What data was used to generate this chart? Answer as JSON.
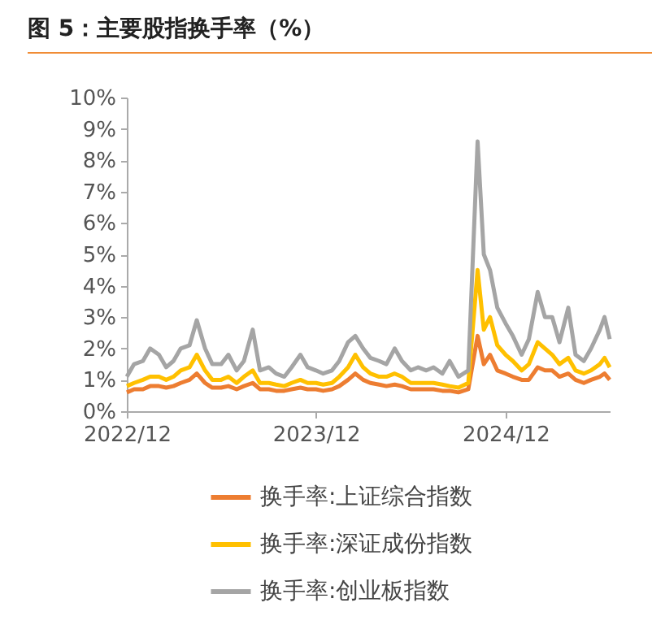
{
  "chart_data": {
    "type": "line",
    "title": "图 5：主要股指换手率（%）",
    "x": [
      "2022-12-01",
      "2022-12-15",
      "2023-01-01",
      "2023-01-15",
      "2023-02-01",
      "2023-02-15",
      "2023-03-01",
      "2023-03-15",
      "2023-04-01",
      "2023-04-15",
      "2023-05-01",
      "2023-05-15",
      "2023-06-01",
      "2023-06-15",
      "2023-07-01",
      "2023-07-15",
      "2023-08-01",
      "2023-08-15",
      "2023-09-01",
      "2023-09-15",
      "2023-10-01",
      "2023-10-15",
      "2023-11-01",
      "2023-11-15",
      "2023-12-01",
      "2023-12-15",
      "2024-01-01",
      "2024-01-15",
      "2024-02-01",
      "2024-02-15",
      "2024-03-01",
      "2024-03-15",
      "2024-04-01",
      "2024-04-15",
      "2024-05-01",
      "2024-05-15",
      "2024-06-01",
      "2024-06-15",
      "2024-07-01",
      "2024-07-15",
      "2024-08-01",
      "2024-08-15",
      "2024-09-01",
      "2024-09-20",
      "2024-10-08",
      "2024-10-20",
      "2024-11-01",
      "2024-11-15",
      "2024-12-01",
      "2024-12-15",
      "2025-01-01",
      "2025-01-15",
      "2025-02-01",
      "2025-02-15",
      "2025-03-01",
      "2025-03-15",
      "2025-04-01",
      "2025-04-15",
      "2025-05-01",
      "2025-05-15",
      "2025-06-01",
      "2025-06-10",
      "2025-06-20"
    ],
    "series": [
      {
        "name": "换手率:上证综合指数",
        "color": "#ed7d31",
        "values": [
          0.6,
          0.7,
          0.7,
          0.8,
          0.8,
          0.75,
          0.8,
          0.9,
          1.0,
          1.2,
          0.9,
          0.75,
          0.75,
          0.8,
          0.7,
          0.8,
          0.9,
          0.7,
          0.7,
          0.65,
          0.65,
          0.7,
          0.75,
          0.7,
          0.7,
          0.65,
          0.7,
          0.8,
          1.0,
          1.2,
          1.0,
          0.9,
          0.85,
          0.8,
          0.85,
          0.8,
          0.7,
          0.7,
          0.7,
          0.7,
          0.65,
          0.65,
          0.6,
          0.7,
          2.4,
          1.5,
          1.8,
          1.3,
          1.2,
          1.1,
          1.0,
          1.0,
          1.4,
          1.3,
          1.3,
          1.1,
          1.2,
          1.0,
          0.9,
          1.0,
          1.1,
          1.2,
          1.0
        ]
      },
      {
        "name": "换手率:深证成份指数",
        "color": "#ffc000",
        "values": [
          0.8,
          0.9,
          1.0,
          1.1,
          1.1,
          1.0,
          1.1,
          1.3,
          1.4,
          1.8,
          1.3,
          1.0,
          1.0,
          1.1,
          0.9,
          1.1,
          1.3,
          0.9,
          0.9,
          0.85,
          0.8,
          0.9,
          1.0,
          0.9,
          0.9,
          0.85,
          0.9,
          1.1,
          1.4,
          1.8,
          1.4,
          1.2,
          1.1,
          1.1,
          1.2,
          1.1,
          0.9,
          0.9,
          0.9,
          0.9,
          0.85,
          0.8,
          0.75,
          0.9,
          4.5,
          2.6,
          3.0,
          2.1,
          1.8,
          1.6,
          1.3,
          1.5,
          2.2,
          2.0,
          1.8,
          1.5,
          1.7,
          1.3,
          1.2,
          1.3,
          1.5,
          1.7,
          1.4
        ]
      },
      {
        "name": "换手率:创业板指数",
        "color": "#a5a5a5",
        "values": [
          1.1,
          1.5,
          1.6,
          2.0,
          1.8,
          1.4,
          1.6,
          2.0,
          2.1,
          2.9,
          2.0,
          1.5,
          1.5,
          1.8,
          1.3,
          1.6,
          2.6,
          1.3,
          1.4,
          1.2,
          1.1,
          1.4,
          1.8,
          1.4,
          1.3,
          1.2,
          1.3,
          1.6,
          2.2,
          2.4,
          2.0,
          1.7,
          1.6,
          1.5,
          2.0,
          1.6,
          1.3,
          1.4,
          1.3,
          1.4,
          1.2,
          1.6,
          1.1,
          1.3,
          8.6,
          5.0,
          4.5,
          3.3,
          2.8,
          2.4,
          1.8,
          2.3,
          3.8,
          3.0,
          3.0,
          2.2,
          3.3,
          1.8,
          1.6,
          2.0,
          2.6,
          3.0,
          2.3
        ]
      }
    ],
    "xlim": [
      "2022-12-01",
      "2025-06-20"
    ],
    "xticks": [
      {
        "value": "2022-12-01",
        "label": "2022/12"
      },
      {
        "value": "2023-12-01",
        "label": "2023/12"
      },
      {
        "value": "2024-12-01",
        "label": "2024/12"
      }
    ],
    "ylim": [
      0,
      10
    ],
    "yticks": [
      {
        "value": 0,
        "label": "0%"
      },
      {
        "value": 1,
        "label": "1%"
      },
      {
        "value": 2,
        "label": "2%"
      },
      {
        "value": 3,
        "label": "3%"
      },
      {
        "value": 4,
        "label": "4%"
      },
      {
        "value": 5,
        "label": "5%"
      },
      {
        "value": 6,
        "label": "6%"
      },
      {
        "value": 7,
        "label": "7%"
      },
      {
        "value": 8,
        "label": "8%"
      },
      {
        "value": 9,
        "label": "9%"
      },
      {
        "value": 10,
        "label": "10%"
      }
    ],
    "legend": "bottom",
    "grid": false
  }
}
